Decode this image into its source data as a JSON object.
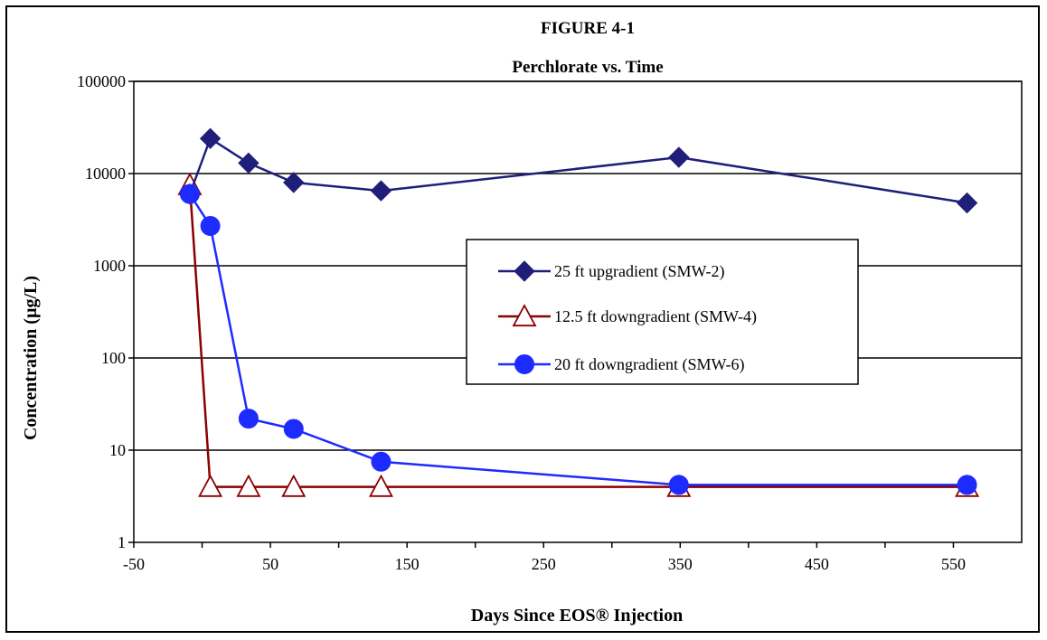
{
  "chart_data": {
    "type": "line",
    "title": "FIGURE 4-1",
    "subtitle": "Perchlorate vs. Time",
    "xlabel": "Days Since EOS® Injection",
    "ylabel": "Concentration (µg/L)",
    "xlim": [
      -50,
      600
    ],
    "ylim": [
      1,
      100000
    ],
    "yscale": "log",
    "grid": true,
    "legend_position": "center-right",
    "x_ticks": [
      "-50",
      "50",
      "150",
      "250",
      "350",
      "450",
      "550"
    ],
    "y_ticks": [
      "1",
      "10",
      "100",
      "1000",
      "10000",
      "100000"
    ],
    "series": [
      {
        "name": "25 ft upgradient (SMW-2)",
        "color": "#1f1f7a",
        "marker": "diamond",
        "x": [
          -9,
          6,
          34,
          67,
          131,
          349,
          560
        ],
        "y": [
          6000,
          24000,
          13000,
          8000,
          6500,
          15000,
          4800
        ]
      },
      {
        "name": "12.5 ft downgradient (SMW-4)",
        "color": "#8b0000",
        "marker": "triangle-open",
        "x": [
          -9,
          6,
          34,
          67,
          131,
          349,
          560
        ],
        "y": [
          7500,
          4,
          4,
          4,
          4,
          4,
          4
        ]
      },
      {
        "name": "20 ft downgradient (SMW-6)",
        "color": "#1e2bff",
        "marker": "circle",
        "x": [
          -9,
          6,
          34,
          67,
          131,
          349,
          560
        ],
        "y": [
          6000,
          2700,
          22,
          17,
          7.5,
          4.2,
          4.2
        ]
      }
    ]
  }
}
